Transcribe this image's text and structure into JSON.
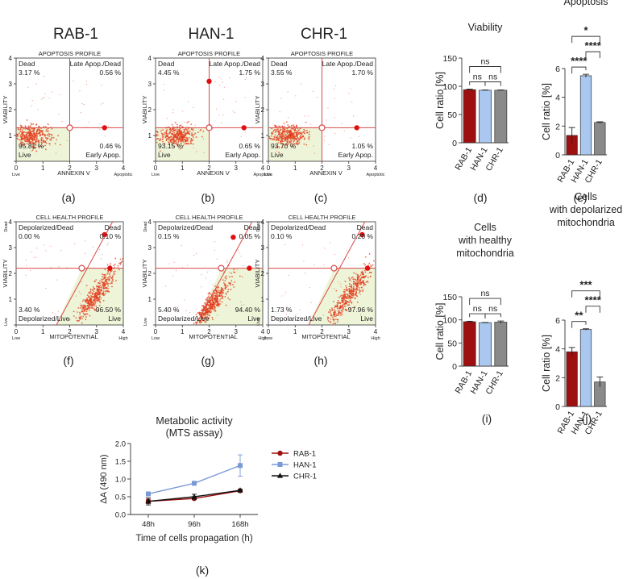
{
  "column_titles": [
    "RAB-1",
    "HAN-1",
    "CHR-1"
  ],
  "colors": {
    "rab": "#9e0f0f",
    "han": "#a9c7ef",
    "chr": "#8a8a8a",
    "gate": "#d84a4a",
    "highlight": "#edf4d7",
    "scatter": "#e23a1a",
    "marker": "#e01010",
    "line_rab": "#9e1010",
    "line_han": "#7a9ad6",
    "line_chr": "#111111"
  },
  "chart_data": [
    {
      "id": "a",
      "type": "scatter",
      "label": "(a)",
      "title": "APOPTOSIS PROFILE",
      "xlabel": "ANNEXIN V",
      "ylabel": "VIABILITY",
      "xlim": [
        0,
        4
      ],
      "ylim": [
        0,
        4
      ],
      "x_ticks": [
        "0",
        "1",
        "2",
        "3",
        "4"
      ],
      "y_ticks": [
        "0",
        "1",
        "2",
        "3",
        "4"
      ],
      "x_low": "Live",
      "x_high": "Apoptotic",
      "gate": {
        "x": 2.0,
        "y": 1.3
      },
      "marker": {
        "x": 3.3,
        "y": 1.3
      },
      "cluster": {
        "x": 0.6,
        "y": 1.0,
        "sx": 0.35,
        "sy": 0.2,
        "n": 360
      },
      "quadrants": {
        "tl_name": "Dead",
        "tl_val": "3.17 %",
        "tr_name": "Late Apop./Dead",
        "tr_val": "0.56 %",
        "bl_name": "Live",
        "bl_val": "95.81 %",
        "br_name": "Early Apop.",
        "br_val": "0.46 %"
      }
    },
    {
      "id": "b",
      "type": "scatter",
      "label": "(b)",
      "title": "APOPTOSIS PROFILE",
      "xlabel": "ANNEXIN V",
      "ylabel": "VIABILITY",
      "xlim": [
        0,
        4
      ],
      "ylim": [
        0,
        4
      ],
      "x_ticks": [
        "0",
        "1",
        "2",
        "3",
        "4"
      ],
      "y_ticks": [
        "0",
        "1",
        "2",
        "3",
        "4"
      ],
      "x_low": "Live",
      "x_high": "Apoptotic",
      "gate": {
        "x": 2.0,
        "y": 1.3
      },
      "marker": {
        "x": 3.3,
        "y": 1.3
      },
      "marker2": {
        "x": 2.0,
        "y": 3.1
      },
      "cluster": {
        "x": 0.8,
        "y": 1.0,
        "sx": 0.35,
        "sy": 0.2,
        "n": 360
      },
      "quadrants": {
        "tl_name": "Dead",
        "tl_val": "4.45 %",
        "tr_name": "Late Apop./Dead",
        "tr_val": "1.75 %",
        "bl_name": "Live",
        "bl_val": "93.15 %",
        "br_name": "Early Apop.",
        "br_val": "0.65 %"
      }
    },
    {
      "id": "c",
      "type": "scatter",
      "label": "(c)",
      "title": "APOPTOSIS PROFILE",
      "xlabel": "ANNEXIN V",
      "ylabel": "VIABILITY",
      "xlim": [
        0,
        4
      ],
      "ylim": [
        0,
        4
      ],
      "x_ticks": [
        "0",
        "1",
        "2",
        "3",
        "4"
      ],
      "y_ticks": [
        "0",
        "1",
        "2",
        "3",
        "4"
      ],
      "x_low": "Live",
      "x_high": "Apoptotic",
      "gate": {
        "x": 2.0,
        "y": 1.3
      },
      "marker": {
        "x": 3.3,
        "y": 1.3
      },
      "cluster": {
        "x": 0.75,
        "y": 1.0,
        "sx": 0.35,
        "sy": 0.2,
        "n": 360
      },
      "quadrants": {
        "tl_name": "Dead",
        "tl_val": "3.55 %",
        "tr_name": "Late Apop./Dead",
        "tr_val": "1.70 %",
        "bl_name": "Live",
        "bl_val": "93.70 %",
        "br_name": "Early Apop.",
        "br_val": "1.05 %"
      }
    },
    {
      "id": "d",
      "type": "bar",
      "label": "(d)",
      "title": "Viability",
      "ylabel": "Cell ratio [%]",
      "categories": [
        "RAB-1",
        "HAN-1",
        "CHR-1"
      ],
      "values": [
        94,
        93,
        93
      ],
      "errors": [
        1,
        0.5,
        0.5
      ],
      "ylim": [
        0,
        150
      ],
      "y_ticks": [
        0,
        50,
        100,
        150
      ],
      "significance": [
        {
          "a": 0,
          "b": 2,
          "text": "ns",
          "level": 1
        },
        {
          "a": 0,
          "b": 1,
          "text": "ns",
          "level": 0
        },
        {
          "a": 1,
          "b": 2,
          "text": "ns",
          "level": 0
        }
      ]
    },
    {
      "id": "e",
      "type": "bar",
      "label": "(e)",
      "title": "Apoptosis",
      "ylabel": "Cell ratio [%]",
      "categories": [
        "RAB-1",
        "HAN-1",
        "CHR-1"
      ],
      "values": [
        1.35,
        5.5,
        2.25
      ],
      "errors": [
        0.55,
        0.1,
        0.05
      ],
      "ylim": [
        0,
        6
      ],
      "y_ticks": [
        0,
        2,
        4,
        6
      ],
      "significance": [
        {
          "a": 0,
          "b": 2,
          "text": "*",
          "level": 2
        },
        {
          "a": 1,
          "b": 2,
          "text": "****",
          "level": 1
        },
        {
          "a": 0,
          "b": 1,
          "text": "****",
          "level": 0
        }
      ]
    },
    {
      "id": "f",
      "type": "scatter",
      "label": "(f)",
      "title": "CELL HEALTH PROFILE",
      "xlabel": "MITOPOTENTIAL",
      "ylabel": "VIABILITY",
      "xlim": [
        0,
        4
      ],
      "ylim": [
        0,
        4
      ],
      "x_ticks": [
        "0",
        "1",
        "2",
        "3",
        "4"
      ],
      "y_ticks": [
        "0",
        "1",
        "2",
        "3",
        "4"
      ],
      "x_low": "Low",
      "x_high": "High",
      "y_low": "Live",
      "y_high": "Dead",
      "gate": {
        "x": 2.45,
        "y": 2.2
      },
      "gate_line": [
        [
          1.5,
          0
        ],
        [
          3.6,
          4.0
        ]
      ],
      "marker": {
        "x": 3.5,
        "y": 2.2
      },
      "marker2": {
        "x": 3.3,
        "y": 3.5
      },
      "cluster": {
        "x": 3.0,
        "y": 1.2,
        "sx": 0.35,
        "sy": 0.35,
        "n": 420,
        "diag": true
      },
      "quadrants": {
        "tl_name": "Depolarized/Dead",
        "tl_val": "0.00 %",
        "tr_name": "Dead",
        "tr_val": "0.10 %",
        "bl_name": "Depolarized/Live",
        "bl_val": "3.40 %",
        "br_name": "Live",
        "br_val": "96.50 %"
      }
    },
    {
      "id": "g",
      "type": "scatter",
      "label": "(g)",
      "title": "CELL HEALTH PROFILE",
      "xlabel": "MITOPOTENTIAL",
      "ylabel": "VIABILITY",
      "xlim": [
        0,
        4
      ],
      "ylim": [
        0,
        4
      ],
      "x_ticks": [
        "0",
        "1",
        "2",
        "3",
        "4"
      ],
      "y_ticks": [
        "0",
        "1",
        "2",
        "3",
        "4"
      ],
      "x_low": "Low",
      "x_high": "High",
      "y_low": "Live",
      "y_high": "Dead",
      "gate": {
        "x": 2.45,
        "y": 2.2
      },
      "gate_line": [
        [
          1.5,
          0
        ],
        [
          3.6,
          4.0
        ]
      ],
      "marker": {
        "x": 3.5,
        "y": 2.2
      },
      "marker2": {
        "x": 2.9,
        "y": 3.4
      },
      "cluster": {
        "x": 2.1,
        "y": 0.8,
        "sx": 0.3,
        "sy": 0.3,
        "n": 420,
        "diag": true
      },
      "quadrants": {
        "tl_name": "Depolarized/Dead",
        "tl_val": "0.15 %",
        "tr_name": "Dead",
        "tr_val": "0.05 %",
        "bl_name": "Depolarized/Live",
        "bl_val": "5.40 %",
        "br_name": "Live",
        "br_val": "94.40 %"
      }
    },
    {
      "id": "h",
      "type": "scatter",
      "label": "(h)",
      "title": "CELL HEALTH PROFILE",
      "xlabel": "MITOPOTENTIAL",
      "ylabel": "VIABILITY",
      "xlim": [
        0,
        4
      ],
      "ylim": [
        0,
        4
      ],
      "x_ticks": [
        "0",
        "1",
        "2",
        "3",
        "4"
      ],
      "y_ticks": [
        "0",
        "1",
        "2",
        "3",
        "4"
      ],
      "x_low": "Low",
      "x_high": "High",
      "y_low": "Live",
      "y_high": "Dead",
      "gate": {
        "x": 2.45,
        "y": 2.2
      },
      "gate_line": [
        [
          1.5,
          0
        ],
        [
          3.6,
          4.0
        ]
      ],
      "marker": {
        "x": 3.7,
        "y": 2.2
      },
      "marker2": {
        "x": 3.5,
        "y": 3.5
      },
      "cluster": {
        "x": 3.0,
        "y": 1.1,
        "sx": 0.4,
        "sy": 0.4,
        "n": 420,
        "diag": true
      },
      "quadrants": {
        "tl_name": "Depolarized/Dead",
        "tl_val": "0.10 %",
        "tr_name": "Dead",
        "tr_val": "0.20 %",
        "bl_name": "Depolarized/Live",
        "bl_val": "1.73 %",
        "br_name": "Live",
        "br_val": "97.96 %"
      }
    },
    {
      "id": "i",
      "type": "bar",
      "label": "(i)",
      "title": [
        "Cells",
        "with healthy",
        "mitochondria"
      ],
      "ylabel": "Cell ratio [%]",
      "categories": [
        "RAB-1",
        "HAN-1",
        "CHR-1"
      ],
      "values": [
        96,
        94,
        95
      ],
      "errors": [
        1,
        0.5,
        2.5
      ],
      "ylim": [
        0,
        150
      ],
      "y_ticks": [
        0,
        50,
        100,
        150
      ],
      "significance": [
        {
          "a": 0,
          "b": 2,
          "text": "ns",
          "level": 1
        },
        {
          "a": 0,
          "b": 1,
          "text": "ns",
          "level": 0
        },
        {
          "a": 1,
          "b": 2,
          "text": "ns",
          "level": 0
        }
      ]
    },
    {
      "id": "j",
      "type": "bar",
      "label": "(j)",
      "title": [
        "Cells",
        "with depolarized",
        "mitochondria"
      ],
      "ylabel": "Cell ratio [%]",
      "categories": [
        "RAB-1",
        "HAN-1",
        "CHR-1"
      ],
      "values": [
        3.8,
        5.35,
        1.7
      ],
      "errors": [
        0.3,
        0.05,
        0.35
      ],
      "ylim": [
        0,
        6
      ],
      "y_ticks": [
        0,
        2,
        4,
        6
      ],
      "significance": [
        {
          "a": 0,
          "b": 2,
          "text": "***",
          "level": 2
        },
        {
          "a": 1,
          "b": 2,
          "text": "****",
          "level": 1
        },
        {
          "a": 0,
          "b": 1,
          "text": "**",
          "level": 0
        }
      ]
    },
    {
      "id": "k",
      "type": "line",
      "label": "(k)",
      "title": [
        "Metabolic activity",
        "(MTS assay)"
      ],
      "xlabel": "Time of cells propagation (h)",
      "ylabel": "ΔA (490 nm)",
      "x": [
        "48h",
        "96h",
        "168h"
      ],
      "ylim": [
        0,
        2.0
      ],
      "y_ticks": [
        "0.0",
        "0.5",
        "1.0",
        "1.5",
        "2.0"
      ],
      "series": [
        {
          "name": "RAB-1",
          "values": [
            0.37,
            0.45,
            0.67
          ],
          "errors": [
            0.06,
            0.03,
            0.02
          ],
          "marker": "circle"
        },
        {
          "name": "HAN-1",
          "values": [
            0.58,
            0.88,
            1.38
          ],
          "errors": [
            0.02,
            0.03,
            0.3
          ],
          "marker": "square"
        },
        {
          "name": "CHR-1",
          "values": [
            0.37,
            0.5,
            0.68
          ],
          "errors": [
            0.1,
            0.07,
            0.03
          ],
          "marker": "triangle"
        }
      ]
    }
  ]
}
